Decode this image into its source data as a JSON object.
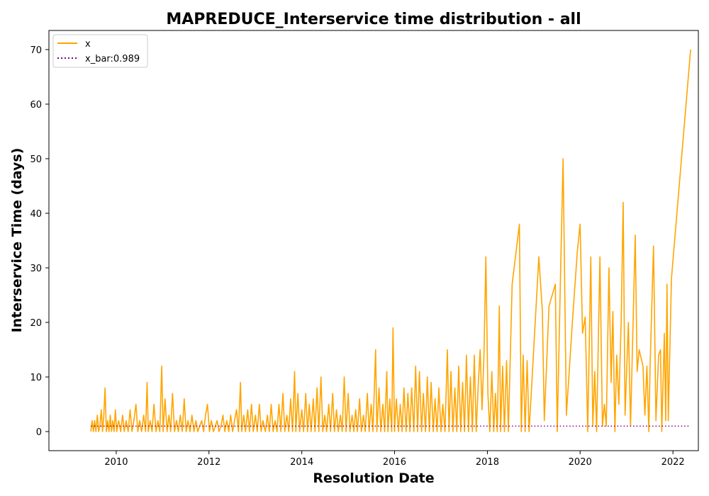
{
  "chart_data": {
    "type": "line",
    "title": "MAPREDUCE_Interservice time distribution - all",
    "xlabel": "Resolution Date",
    "ylabel": "Interservice Time (days)",
    "xlim": [
      "2008-07-20",
      "2022-07-20"
    ],
    "ylim": [
      -3.5,
      73.5
    ],
    "x_ticks": [
      "2010",
      "2012",
      "2014",
      "2016",
      "2018",
      "2020",
      "2022"
    ],
    "y_ticks": [
      0,
      10,
      20,
      30,
      40,
      50,
      60,
      70
    ],
    "grid": false,
    "legend": {
      "position": "top-left",
      "entries": [
        "x",
        "x_bar:0.989"
      ]
    },
    "series": [
      {
        "name": "x",
        "color": "#FFA500",
        "style": "solid",
        "points": [
          [
            "2009-06-15",
            0
          ],
          [
            "2009-06-25",
            2
          ],
          [
            "2009-07-05",
            0
          ],
          [
            "2009-07-15",
            2
          ],
          [
            "2009-07-25",
            0
          ],
          [
            "2009-08-05",
            3
          ],
          [
            "2009-08-15",
            0
          ],
          [
            "2009-08-25",
            1
          ],
          [
            "2009-09-05",
            4
          ],
          [
            "2009-09-15",
            0
          ],
          [
            "2009-09-25",
            3
          ],
          [
            "2009-10-05",
            8
          ],
          [
            "2009-10-15",
            0
          ],
          [
            "2009-10-25",
            2
          ],
          [
            "2009-11-05",
            0
          ],
          [
            "2009-11-15",
            3
          ],
          [
            "2009-11-25",
            0
          ],
          [
            "2009-12-05",
            2
          ],
          [
            "2009-12-15",
            0
          ],
          [
            "2009-12-25",
            4
          ],
          [
            "2010-01-05",
            0
          ],
          [
            "2010-01-20",
            2
          ],
          [
            "2010-02-05",
            0
          ],
          [
            "2010-02-20",
            3
          ],
          [
            "2010-03-05",
            0
          ],
          [
            "2010-03-20",
            2
          ],
          [
            "2010-04-05",
            0
          ],
          [
            "2010-04-20",
            4
          ],
          [
            "2010-05-05",
            0
          ],
          [
            "2010-05-20",
            2
          ],
          [
            "2010-06-05",
            5
          ],
          [
            "2010-06-20",
            0
          ],
          [
            "2010-07-05",
            2
          ],
          [
            "2010-07-20",
            0
          ],
          [
            "2010-08-05",
            3
          ],
          [
            "2010-08-20",
            0
          ],
          [
            "2010-09-01",
            9
          ],
          [
            "2010-09-10",
            0
          ],
          [
            "2010-09-25",
            2
          ],
          [
            "2010-10-10",
            0
          ],
          [
            "2010-10-25",
            5
          ],
          [
            "2010-11-10",
            0
          ],
          [
            "2010-11-25",
            2
          ],
          [
            "2010-12-10",
            0
          ],
          [
            "2010-12-25",
            12
          ],
          [
            "2011-01-05",
            0
          ],
          [
            "2011-01-20",
            6
          ],
          [
            "2011-02-05",
            0
          ],
          [
            "2011-02-20",
            3
          ],
          [
            "2011-03-05",
            0
          ],
          [
            "2011-03-20",
            7
          ],
          [
            "2011-04-05",
            0
          ],
          [
            "2011-04-20",
            2
          ],
          [
            "2011-05-05",
            0
          ],
          [
            "2011-05-20",
            3
          ],
          [
            "2011-06-05",
            0
          ],
          [
            "2011-06-20",
            6
          ],
          [
            "2011-07-05",
            0
          ],
          [
            "2011-07-20",
            2
          ],
          [
            "2011-08-05",
            0
          ],
          [
            "2011-08-20",
            3
          ],
          [
            "2011-09-05",
            0
          ],
          [
            "2011-09-20",
            2
          ],
          [
            "2011-10-05",
            0
          ],
          [
            "2011-10-20",
            1
          ],
          [
            "2011-11-05",
            2
          ],
          [
            "2011-11-20",
            0
          ],
          [
            "2011-12-05",
            3
          ],
          [
            "2011-12-20",
            5
          ],
          [
            "2012-01-05",
            0
          ],
          [
            "2012-01-20",
            2
          ],
          [
            "2012-02-05",
            0
          ],
          [
            "2012-02-20",
            1
          ],
          [
            "2012-03-05",
            2
          ],
          [
            "2012-03-20",
            0
          ],
          [
            "2012-04-05",
            1
          ],
          [
            "2012-04-20",
            3
          ],
          [
            "2012-05-05",
            0
          ],
          [
            "2012-05-20",
            2
          ],
          [
            "2012-06-05",
            0
          ],
          [
            "2012-06-20",
            3
          ],
          [
            "2012-07-05",
            0
          ],
          [
            "2012-07-20",
            2
          ],
          [
            "2012-08-05",
            4
          ],
          [
            "2012-08-20",
            0
          ],
          [
            "2012-09-05",
            9
          ],
          [
            "2012-09-15",
            0
          ],
          [
            "2012-10-01",
            3
          ],
          [
            "2012-10-15",
            0
          ],
          [
            "2012-11-01",
            4
          ],
          [
            "2012-11-15",
            0
          ],
          [
            "2012-12-01",
            5
          ],
          [
            "2012-12-15",
            0
          ],
          [
            "2013-01-01",
            3
          ],
          [
            "2013-01-15",
            0
          ],
          [
            "2013-02-01",
            5
          ],
          [
            "2013-02-15",
            0
          ],
          [
            "2013-03-01",
            2
          ],
          [
            "2013-03-20",
            0
          ],
          [
            "2013-04-05",
            3
          ],
          [
            "2013-04-20",
            0
          ],
          [
            "2013-05-05",
            5
          ],
          [
            "2013-05-20",
            0
          ],
          [
            "2013-06-05",
            2
          ],
          [
            "2013-06-20",
            0
          ],
          [
            "2013-07-05",
            5
          ],
          [
            "2013-07-20",
            0
          ],
          [
            "2013-08-05",
            7
          ],
          [
            "2013-08-20",
            0
          ],
          [
            "2013-09-05",
            3
          ],
          [
            "2013-09-20",
            0
          ],
          [
            "2013-10-05",
            6
          ],
          [
            "2013-10-20",
            0
          ],
          [
            "2013-11-05",
            11
          ],
          [
            "2013-11-15",
            0
          ],
          [
            "2013-12-01",
            7
          ],
          [
            "2013-12-15",
            0
          ],
          [
            "2014-01-01",
            4
          ],
          [
            "2014-01-15",
            0
          ],
          [
            "2014-02-01",
            7
          ],
          [
            "2014-02-15",
            0
          ],
          [
            "2014-03-01",
            5
          ],
          [
            "2014-03-15",
            0
          ],
          [
            "2014-04-01",
            6
          ],
          [
            "2014-04-15",
            0
          ],
          [
            "2014-05-01",
            8
          ],
          [
            "2014-05-15",
            0
          ],
          [
            "2014-06-01",
            10
          ],
          [
            "2014-06-15",
            0
          ],
          [
            "2014-07-01",
            3
          ],
          [
            "2014-07-15",
            0
          ],
          [
            "2014-08-01",
            5
          ],
          [
            "2014-08-15",
            0
          ],
          [
            "2014-09-01",
            7
          ],
          [
            "2014-09-15",
            0
          ],
          [
            "2014-10-01",
            4
          ],
          [
            "2014-10-15",
            0
          ],
          [
            "2014-11-01",
            3
          ],
          [
            "2014-11-15",
            0
          ],
          [
            "2014-12-01",
            10
          ],
          [
            "2014-12-15",
            0
          ],
          [
            "2015-01-01",
            7
          ],
          [
            "2015-01-15",
            0
          ],
          [
            "2015-02-01",
            3
          ],
          [
            "2015-02-15",
            0
          ],
          [
            "2015-03-01",
            4
          ],
          [
            "2015-03-15",
            0
          ],
          [
            "2015-04-01",
            6
          ],
          [
            "2015-04-15",
            0
          ],
          [
            "2015-05-01",
            3
          ],
          [
            "2015-05-15",
            0
          ],
          [
            "2015-06-01",
            7
          ],
          [
            "2015-06-15",
            0
          ],
          [
            "2015-07-01",
            5
          ],
          [
            "2015-07-15",
            0
          ],
          [
            "2015-08-05",
            15
          ],
          [
            "2015-08-15",
            0
          ],
          [
            "2015-09-01",
            8
          ],
          [
            "2015-09-15",
            0
          ],
          [
            "2015-10-01",
            5
          ],
          [
            "2015-10-15",
            0
          ],
          [
            "2015-11-01",
            11
          ],
          [
            "2015-11-10",
            0
          ],
          [
            "2015-11-25",
            6
          ],
          [
            "2015-12-10",
            0
          ],
          [
            "2015-12-20",
            19
          ],
          [
            "2016-01-01",
            0
          ],
          [
            "2016-01-15",
            6
          ],
          [
            "2016-02-01",
            0
          ],
          [
            "2016-02-15",
            5
          ],
          [
            "2016-03-01",
            0
          ],
          [
            "2016-03-15",
            8
          ],
          [
            "2016-04-01",
            0
          ],
          [
            "2016-04-15",
            7
          ],
          [
            "2016-05-01",
            0
          ],
          [
            "2016-05-15",
            8
          ],
          [
            "2016-06-01",
            0
          ],
          [
            "2016-06-15",
            12
          ],
          [
            "2016-07-01",
            0
          ],
          [
            "2016-07-15",
            11
          ],
          [
            "2016-08-01",
            0
          ],
          [
            "2016-08-15",
            7
          ],
          [
            "2016-09-01",
            0
          ],
          [
            "2016-09-15",
            10
          ],
          [
            "2016-10-01",
            0
          ],
          [
            "2016-10-15",
            9
          ],
          [
            "2016-11-01",
            0
          ],
          [
            "2016-11-15",
            6
          ],
          [
            "2016-12-01",
            0
          ],
          [
            "2016-12-15",
            8
          ],
          [
            "2017-01-01",
            0
          ],
          [
            "2017-01-15",
            5
          ],
          [
            "2017-02-01",
            0
          ],
          [
            "2017-02-20",
            15
          ],
          [
            "2017-03-05",
            0
          ],
          [
            "2017-03-20",
            11
          ],
          [
            "2017-04-05",
            0
          ],
          [
            "2017-04-20",
            8
          ],
          [
            "2017-05-05",
            0
          ],
          [
            "2017-05-20",
            12
          ],
          [
            "2017-06-05",
            0
          ],
          [
            "2017-06-20",
            9
          ],
          [
            "2017-07-05",
            0
          ],
          [
            "2017-07-20",
            14
          ],
          [
            "2017-08-05",
            0
          ],
          [
            "2017-08-20",
            10
          ],
          [
            "2017-09-05",
            0
          ],
          [
            "2017-09-20",
            14
          ],
          [
            "2017-10-05",
            0
          ],
          [
            "2017-10-20",
            8
          ],
          [
            "2017-11-05",
            15
          ],
          [
            "2017-11-20",
            4
          ],
          [
            "2017-12-05",
            14
          ],
          [
            "2017-12-20",
            32
          ],
          [
            "2018-01-05",
            7
          ],
          [
            "2018-01-20",
            0
          ],
          [
            "2018-02-05",
            11
          ],
          [
            "2018-02-20",
            0
          ],
          [
            "2018-03-05",
            7
          ],
          [
            "2018-03-20",
            0
          ],
          [
            "2018-04-05",
            23
          ],
          [
            "2018-04-15",
            0
          ],
          [
            "2018-05-01",
            12
          ],
          [
            "2018-05-15",
            0
          ],
          [
            "2018-06-01",
            13
          ],
          [
            "2018-06-15",
            0
          ],
          [
            "2018-07-15",
            27
          ],
          [
            "2018-09-10",
            38
          ],
          [
            "2018-09-25",
            0
          ],
          [
            "2018-10-10",
            14
          ],
          [
            "2018-10-25",
            0
          ],
          [
            "2018-11-10",
            13
          ],
          [
            "2018-11-25",
            0
          ],
          [
            "2018-12-10",
            6
          ],
          [
            "2019-02-10",
            32
          ],
          [
            "2019-03-10",
            22
          ],
          [
            "2019-03-25",
            2
          ],
          [
            "2019-05-01",
            23
          ],
          [
            "2019-06-20",
            27
          ],
          [
            "2019-07-05",
            0
          ],
          [
            "2019-08-01",
            30
          ],
          [
            "2019-08-20",
            50
          ],
          [
            "2019-09-15",
            3
          ],
          [
            "2019-11-01",
            20
          ],
          [
            "2019-12-10",
            33
          ],
          [
            "2020-01-01",
            38
          ],
          [
            "2020-01-20",
            18
          ],
          [
            "2020-02-10",
            21
          ],
          [
            "2020-03-01",
            0
          ],
          [
            "2020-03-25",
            32
          ],
          [
            "2020-04-10",
            1
          ],
          [
            "2020-04-25",
            11
          ],
          [
            "2020-05-10",
            0
          ],
          [
            "2020-06-05",
            32
          ],
          [
            "2020-06-25",
            1
          ],
          [
            "2020-07-10",
            5
          ],
          [
            "2020-07-25",
            1
          ],
          [
            "2020-08-15",
            30
          ],
          [
            "2020-09-01",
            9
          ],
          [
            "2020-09-15",
            22
          ],
          [
            "2020-10-01",
            0
          ],
          [
            "2020-10-15",
            14
          ],
          [
            "2020-11-01",
            5
          ],
          [
            "2020-11-20",
            21
          ],
          [
            "2020-12-05",
            42
          ],
          [
            "2020-12-20",
            3
          ],
          [
            "2021-01-15",
            20
          ],
          [
            "2021-02-01",
            1
          ],
          [
            "2021-03-10",
            36
          ],
          [
            "2021-03-25",
            11
          ],
          [
            "2021-04-10",
            15
          ],
          [
            "2021-05-10",
            12
          ],
          [
            "2021-05-25",
            3
          ],
          [
            "2021-06-10",
            12
          ],
          [
            "2021-06-25",
            0
          ],
          [
            "2021-07-05",
            12
          ],
          [
            "2021-08-01",
            34
          ],
          [
            "2021-08-20",
            2
          ],
          [
            "2021-09-10",
            14
          ],
          [
            "2021-09-25",
            15
          ],
          [
            "2021-10-05",
            0
          ],
          [
            "2021-10-25",
            18
          ],
          [
            "2021-11-05",
            2
          ],
          [
            "2021-11-15",
            27
          ],
          [
            "2021-11-25",
            2
          ],
          [
            "2021-12-20",
            28
          ],
          [
            "2022-05-20",
            70
          ]
        ]
      },
      {
        "name": "x_bar:0.989",
        "color": "#800080",
        "style": "dotted",
        "points": [
          [
            "2009-06-15",
            0.989
          ],
          [
            "2022-05-20",
            0.989
          ]
        ]
      }
    ]
  }
}
